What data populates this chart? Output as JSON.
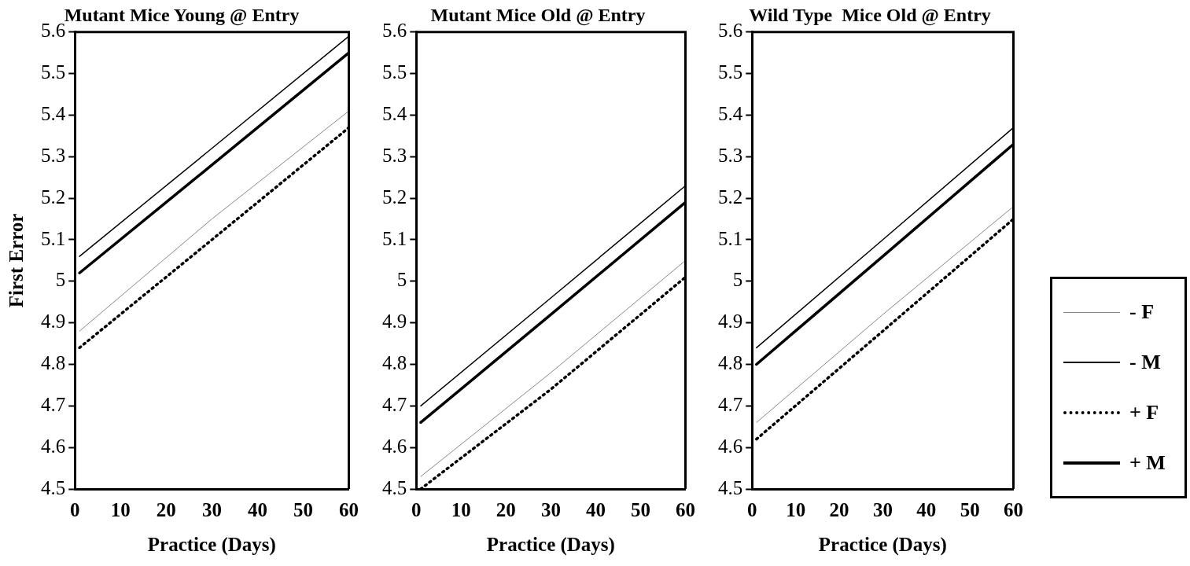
{
  "chart_data": [
    {
      "type": "line",
      "title": "Mutant Mice Young @ Entry",
      "xlabel": "Practice (Days)",
      "ylabel": "First Error",
      "x": [
        1,
        30,
        60
      ],
      "xlim": [
        0,
        60
      ],
      "xticks": [
        0,
        10,
        20,
        30,
        40,
        50,
        60
      ],
      "ylim": [
        4.5,
        5.6
      ],
      "yticks": [
        4.5,
        4.6,
        4.7,
        4.8,
        4.9,
        5,
        5.1,
        5.2,
        5.3,
        5.4,
        5.5,
        5.6
      ],
      "grid": false,
      "marker": "none",
      "series": [
        {
          "color": "#888888",
          "line_style": "solid",
          "values": [
            4.88,
            5.15,
            5.41
          ]
        },
        {
          "color": "#000000",
          "line_style": "solid",
          "values": [
            5.06,
            5.32,
            5.59
          ]
        },
        {
          "color": "#000000",
          "line_style": "dotted",
          "values": [
            4.84,
            5.1,
            5.37
          ]
        },
        {
          "color": "#000000",
          "line_style": "solid",
          "values": [
            5.02,
            5.28,
            5.55
          ]
        }
      ]
    },
    {
      "type": "line",
      "title": "Mutant Mice Old @ Entry",
      "xlabel": "Practice (Days)",
      "x": [
        1,
        30,
        60
      ],
      "xlim": [
        0,
        60
      ],
      "xticks": [
        0,
        10,
        20,
        30,
        40,
        50,
        60
      ],
      "ylim": [
        4.5,
        5.6
      ],
      "yticks": [
        4.5,
        4.6,
        4.7,
        4.8,
        4.9,
        5,
        5.1,
        5.2,
        5.3,
        5.4,
        5.5,
        5.6
      ],
      "grid": false,
      "marker": "none",
      "series": [
        {
          "color": "#888888",
          "line_style": "solid",
          "values": [
            4.53,
            4.78,
            5.05
          ]
        },
        {
          "color": "#000000",
          "line_style": "solid",
          "values": [
            4.7,
            4.96,
            5.23
          ]
        },
        {
          "color": "#000000",
          "line_style": "dotted",
          "values": [
            4.5,
            4.74,
            5.01
          ]
        },
        {
          "color": "#000000",
          "line_style": "solid",
          "values": [
            4.66,
            4.92,
            5.19
          ]
        }
      ]
    },
    {
      "type": "line",
      "title": "Wild Type  Mice Old @ Entry",
      "xlabel": "Practice (Days)",
      "x": [
        1,
        30,
        60
      ],
      "xlim": [
        0,
        60
      ],
      "xticks": [
        0,
        10,
        20,
        30,
        40,
        50,
        60
      ],
      "ylim": [
        4.5,
        5.6
      ],
      "yticks": [
        4.5,
        4.6,
        4.7,
        4.8,
        4.9,
        5,
        5.1,
        5.2,
        5.3,
        5.4,
        5.5,
        5.6
      ],
      "grid": false,
      "legend": "right",
      "marker": "none",
      "series": [
        {
          "name": "- F",
          "color": "#888888",
          "line_style": "solid",
          "values": [
            4.66,
            4.92,
            5.18
          ]
        },
        {
          "name": "- M",
          "color": "#000000",
          "line_style": "solid",
          "values": [
            4.84,
            5.1,
            5.37
          ]
        },
        {
          "name": "+ F",
          "color": "#000000",
          "line_style": "dotted",
          "values": [
            4.62,
            4.88,
            5.15
          ]
        },
        {
          "name": "+ M",
          "color": "#000000",
          "line_style": "solid",
          "values": [
            4.8,
            5.06,
            5.33
          ]
        }
      ]
    }
  ]
}
